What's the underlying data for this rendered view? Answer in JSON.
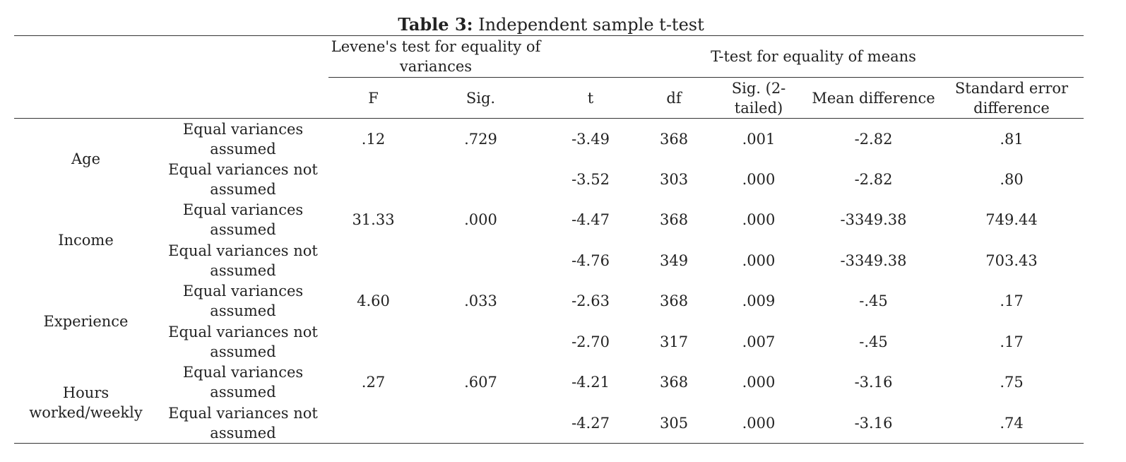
{
  "caption": {
    "label": "Table 3:",
    "title": "Independent sample t-test"
  },
  "header": {
    "levene": "Levene's test for equality of variances",
    "ttest": "T-test for equality of means",
    "columns": [
      "F",
      "Sig.",
      "t",
      "df",
      "Sig. (2-tailed)",
      "Mean difference",
      "Standard error difference"
    ]
  },
  "groups": [
    {
      "name": "Age",
      "rows": [
        {
          "label": "Equal variances assumed",
          "F": ".12",
          "sig": ".729",
          "t": "-3.49",
          "df": "368",
          "sig2": ".001",
          "mean_diff": "-2.82",
          "se_diff": ".81"
        },
        {
          "label": "Equal variances not assumed",
          "F": "",
          "sig": "",
          "t": "-3.52",
          "df": "303",
          "sig2": ".000",
          "mean_diff": "-2.82",
          "se_diff": ".80"
        }
      ]
    },
    {
      "name": "Income",
      "rows": [
        {
          "label": "Equal variances assumed",
          "F": "31.33",
          "sig": ".000",
          "t": "-4.47",
          "df": "368",
          "sig2": ".000",
          "mean_diff": "-3349.38",
          "se_diff": "749.44"
        },
        {
          "label": "Equal variances not assumed",
          "F": "",
          "sig": "",
          "t": "-4.76",
          "df": "349",
          "sig2": ".000",
          "mean_diff": "-3349.38",
          "se_diff": "703.43"
        }
      ]
    },
    {
      "name": "Experience",
      "rows": [
        {
          "label": "Equal variances assumed",
          "F": "4.60",
          "sig": ".033",
          "t": "-2.63",
          "df": "368",
          "sig2": ".009",
          "mean_diff": "-.45",
          "se_diff": ".17"
        },
        {
          "label": "Equal variances not assumed",
          "F": "",
          "sig": "",
          "t": "-2.70",
          "df": "317",
          "sig2": ".007",
          "mean_diff": "-.45",
          "se_diff": ".17"
        }
      ]
    },
    {
      "name": "Hours worked/weekly",
      "rows": [
        {
          "label": "Equal variances assumed",
          "F": ".27",
          "sig": ".607",
          "t": "-4.21",
          "df": "368",
          "sig2": ".000",
          "mean_diff": "-3.16",
          "se_diff": ".75"
        },
        {
          "label": "Equal variances not assumed",
          "F": "",
          "sig": "",
          "t": "-4.27",
          "df": "305",
          "sig2": ".000",
          "mean_diff": "-3.16",
          "se_diff": ".74"
        }
      ]
    }
  ]
}
